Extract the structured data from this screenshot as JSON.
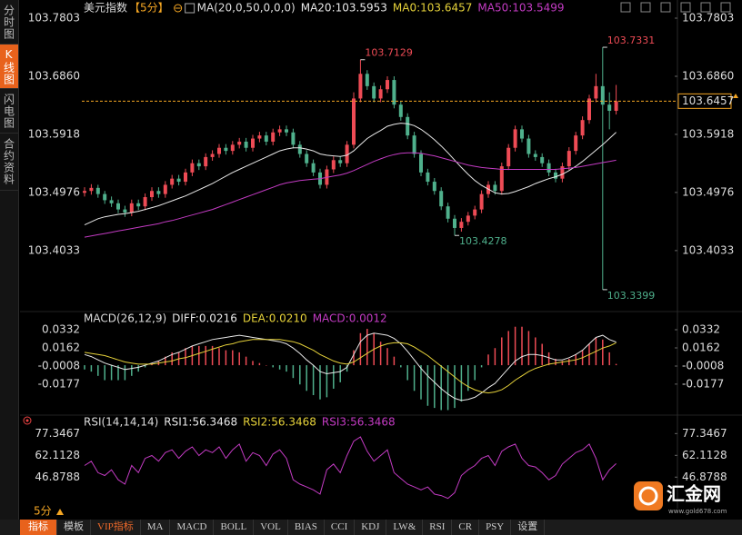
{
  "sidebar": {
    "tabs": [
      "分时图",
      "K线图",
      "闪电图",
      "合约资料"
    ]
  },
  "period_selector": "5分",
  "toolbar": {
    "items": [
      "指标",
      "模板",
      "VIP指标",
      "MA",
      "MACD",
      "BOLL",
      "VOL",
      "BIAS",
      "CCI",
      "KDJ",
      "LW&",
      "RSI",
      "CR",
      "PSY",
      "设置"
    ]
  },
  "logo": {
    "name": "汇金网",
    "url": "www.gold678.com"
  },
  "chart_data": [
    {
      "type": "candlestick",
      "title": "美元指数",
      "period": "【5分】",
      "indicator": "MA(20,0,50,0,0,0)",
      "up_color": "#ee4b55",
      "down_color": "#4fb08c",
      "last_price_color": "#f5a623",
      "open": [
        103.497,
        103.5,
        103.505,
        103.495,
        103.485,
        103.48,
        103.47,
        103.465,
        103.48,
        103.475,
        103.49,
        103.5,
        103.495,
        103.51,
        103.52,
        103.515,
        103.53,
        103.545,
        103.54,
        103.555,
        103.56,
        103.57,
        103.565,
        103.575,
        103.58,
        103.57,
        103.585,
        103.59,
        103.58,
        103.595,
        103.6,
        103.595,
        103.575,
        103.56,
        103.545,
        103.53,
        103.51,
        103.535,
        103.55,
        103.545,
        103.575,
        103.65,
        103.69,
        103.67,
        103.65,
        103.665,
        103.68,
        103.64,
        103.62,
        103.59,
        103.56,
        103.53,
        103.515,
        103.5,
        103.475,
        103.455,
        103.44,
        103.45,
        103.46,
        103.47,
        103.495,
        103.51,
        103.5,
        103.54,
        103.57,
        103.6,
        103.585,
        103.56,
        103.555,
        103.545,
        103.53,
        103.52,
        103.54,
        103.565,
        103.59,
        103.615,
        103.65,
        103.67,
        103.64,
        103.63
      ],
      "high": [
        103.506,
        103.511,
        103.51,
        103.5,
        103.491,
        103.486,
        103.476,
        103.486,
        103.486,
        103.496,
        103.506,
        103.506,
        103.516,
        103.526,
        103.526,
        103.536,
        103.551,
        103.551,
        103.561,
        103.566,
        103.576,
        103.576,
        103.581,
        103.586,
        103.586,
        103.591,
        103.596,
        103.596,
        103.601,
        103.606,
        103.606,
        103.601,
        103.581,
        103.566,
        103.551,
        103.536,
        103.541,
        103.556,
        103.556,
        103.581,
        103.66,
        103.7129,
        103.696,
        103.676,
        103.671,
        103.686,
        103.686,
        103.646,
        103.626,
        103.596,
        103.566,
        103.536,
        103.521,
        103.506,
        103.481,
        103.461,
        103.456,
        103.466,
        103.476,
        103.501,
        103.516,
        103.516,
        103.546,
        103.576,
        103.606,
        103.606,
        103.591,
        103.566,
        103.561,
        103.551,
        103.536,
        103.546,
        103.571,
        103.596,
        103.621,
        103.656,
        103.69,
        103.7331,
        103.66,
        103.672
      ],
      "low": [
        103.491,
        103.494,
        103.489,
        103.479,
        103.474,
        103.464,
        103.458,
        103.459,
        103.469,
        103.469,
        103.484,
        103.489,
        103.489,
        103.504,
        103.509,
        103.509,
        103.524,
        103.534,
        103.534,
        103.549,
        103.554,
        103.559,
        103.559,
        103.569,
        103.564,
        103.564,
        103.579,
        103.574,
        103.574,
        103.589,
        103.589,
        103.569,
        103.554,
        103.539,
        103.524,
        103.504,
        103.504,
        103.529,
        103.539,
        103.539,
        103.569,
        103.644,
        103.664,
        103.644,
        103.644,
        103.659,
        103.634,
        103.614,
        103.584,
        103.554,
        103.524,
        103.509,
        103.494,
        103.469,
        103.449,
        103.4278,
        103.434,
        103.444,
        103.454,
        103.464,
        103.489,
        103.494,
        103.494,
        103.534,
        103.564,
        103.579,
        103.554,
        103.549,
        103.539,
        103.524,
        103.514,
        103.514,
        103.534,
        103.559,
        103.584,
        103.609,
        103.644,
        103.3399,
        103.6,
        103.624
      ],
      "close": [
        103.5,
        103.505,
        103.495,
        103.485,
        103.48,
        103.47,
        103.465,
        103.48,
        103.475,
        103.49,
        103.5,
        103.495,
        103.51,
        103.52,
        103.515,
        103.53,
        103.545,
        103.54,
        103.555,
        103.56,
        103.57,
        103.565,
        103.575,
        103.58,
        103.57,
        103.585,
        103.59,
        103.58,
        103.595,
        103.6,
        103.595,
        103.575,
        103.56,
        103.545,
        103.53,
        103.51,
        103.535,
        103.55,
        103.545,
        103.575,
        103.65,
        103.69,
        103.67,
        103.65,
        103.665,
        103.68,
        103.64,
        103.62,
        103.59,
        103.56,
        103.53,
        103.515,
        103.5,
        103.475,
        103.455,
        103.44,
        103.45,
        103.46,
        103.47,
        103.495,
        103.51,
        103.5,
        103.54,
        103.57,
        103.6,
        103.585,
        103.56,
        103.555,
        103.545,
        103.53,
        103.52,
        103.54,
        103.565,
        103.59,
        103.615,
        103.65,
        103.67,
        103.64,
        103.63,
        103.6457
      ],
      "series": [
        {
          "name": "MA20:103.5953",
          "color": "#e8e8e8",
          "values": [
            103.445,
            103.45,
            103.455,
            103.458,
            103.46,
            103.462,
            103.463,
            103.465,
            103.467,
            103.47,
            103.473,
            103.476,
            103.48,
            103.484,
            103.488,
            103.492,
            103.497,
            103.502,
            103.507,
            103.512,
            103.518,
            103.524,
            103.53,
            103.535,
            103.54,
            103.545,
            103.55,
            103.555,
            103.56,
            103.565,
            103.568,
            103.57,
            103.57,
            103.568,
            103.565,
            103.56,
            103.558,
            103.557,
            103.556,
            103.558,
            103.565,
            103.575,
            103.585,
            103.592,
            103.598,
            103.605,
            103.608,
            103.61,
            103.609,
            103.606,
            103.6,
            103.592,
            103.583,
            103.573,
            103.562,
            103.55,
            103.538,
            103.527,
            103.517,
            103.509,
            103.503,
            103.497,
            103.495,
            103.496,
            103.499,
            103.503,
            103.507,
            103.512,
            103.516,
            103.52,
            103.523,
            103.527,
            103.533,
            103.54,
            103.548,
            103.557,
            103.566,
            103.575,
            103.585,
            103.5953
          ]
        },
        {
          "name": "MA0:103.6457",
          "color": "#e6d23a"
        },
        {
          "name": "MA50:103.5499",
          "color": "#c33bc3",
          "values": [
            103.425,
            103.427,
            103.429,
            103.431,
            103.433,
            103.435,
            103.437,
            103.439,
            103.441,
            103.443,
            103.445,
            103.447,
            103.45,
            103.452,
            103.455,
            103.458,
            103.461,
            103.464,
            103.467,
            103.47,
            103.474,
            103.478,
            103.482,
            103.486,
            103.49,
            103.494,
            103.498,
            103.502,
            103.506,
            103.51,
            103.513,
            103.515,
            103.517,
            103.518,
            103.519,
            103.52,
            103.522,
            103.524,
            103.526,
            103.529,
            103.533,
            103.538,
            103.543,
            103.548,
            103.552,
            103.556,
            103.559,
            103.561,
            103.562,
            103.562,
            103.561,
            103.559,
            103.557,
            103.554,
            103.551,
            103.548,
            103.545,
            103.542,
            103.54,
            103.538,
            103.537,
            103.536,
            103.535,
            103.535,
            103.535,
            103.535,
            103.535,
            103.535,
            103.535,
            103.535,
            103.535,
            103.536,
            103.537,
            103.538,
            103.54,
            103.542,
            103.544,
            103.546,
            103.548,
            103.5499
          ]
        }
      ],
      "ylim": [
        103.3088,
        103.7803
      ],
      "yticks": [
        103.7803,
        {
          "value": 103.686,
          "label": "103.6860"
        },
        103.5918,
        103.4976,
        103.4033
      ]
    },
    {
      "type": "macd",
      "title": "MACD(26,12,9)",
      "up_color": "#ee4b55",
      "down_color": "#4fb08c",
      "series": [
        {
          "name": "DIFF:0.0216",
          "color": "#e8e8e8",
          "values": [
            0.01,
            0.008,
            0.005,
            0.002,
            0.0,
            -0.002,
            -0.004,
            -0.003,
            -0.002,
            0.0,
            0.002,
            0.004,
            0.007,
            0.01,
            0.012,
            0.015,
            0.018,
            0.02,
            0.022,
            0.024,
            0.025,
            0.026,
            0.027,
            0.028,
            0.027,
            0.026,
            0.025,
            0.024,
            0.023,
            0.022,
            0.02,
            0.016,
            0.011,
            0.005,
            0.0,
            -0.006,
            -0.008,
            -0.007,
            -0.006,
            -0.002,
            0.01,
            0.022,
            0.028,
            0.03,
            0.029,
            0.028,
            0.025,
            0.02,
            0.013,
            0.005,
            -0.003,
            -0.01,
            -0.016,
            -0.022,
            -0.027,
            -0.031,
            -0.033,
            -0.032,
            -0.03,
            -0.026,
            -0.021,
            -0.017,
            -0.01,
            -0.003,
            0.004,
            0.008,
            0.01,
            0.01,
            0.009,
            0.007,
            0.005,
            0.005,
            0.007,
            0.01,
            0.014,
            0.02,
            0.026,
            0.028,
            0.024,
            0.0216
          ]
        },
        {
          "name": "DEA:0.0210",
          "color": "#e6d23a",
          "values": [
            0.012,
            0.011,
            0.01,
            0.009,
            0.007,
            0.005,
            0.003,
            0.002,
            0.001,
            0.001,
            0.001,
            0.002,
            0.003,
            0.004,
            0.006,
            0.007,
            0.009,
            0.011,
            0.013,
            0.015,
            0.017,
            0.019,
            0.02,
            0.022,
            0.023,
            0.024,
            0.024,
            0.024,
            0.024,
            0.024,
            0.023,
            0.022,
            0.02,
            0.017,
            0.014,
            0.01,
            0.007,
            0.004,
            0.002,
            0.001,
            0.003,
            0.007,
            0.011,
            0.015,
            0.018,
            0.02,
            0.021,
            0.021,
            0.02,
            0.017,
            0.013,
            0.009,
            0.004,
            -0.001,
            -0.006,
            -0.011,
            -0.016,
            -0.02,
            -0.023,
            -0.025,
            -0.026,
            -0.025,
            -0.023,
            -0.019,
            -0.014,
            -0.01,
            -0.006,
            -0.003,
            -0.001,
            0.001,
            0.002,
            0.003,
            0.004,
            0.005,
            0.007,
            0.01,
            0.013,
            0.016,
            0.018,
            0.021
          ]
        },
        {
          "name": "MACD:0.0012",
          "color": "#c33bc3",
          "kind": "bar",
          "values": [
            -0.004,
            -0.006,
            -0.01,
            -0.014,
            -0.014,
            -0.014,
            -0.014,
            -0.01,
            -0.006,
            -0.002,
            0.002,
            0.004,
            0.008,
            0.012,
            0.012,
            0.016,
            0.018,
            0.018,
            0.018,
            0.018,
            0.016,
            0.014,
            0.014,
            0.012,
            0.008,
            0.004,
            0.002,
            0.0,
            -0.002,
            -0.004,
            -0.006,
            -0.012,
            -0.018,
            -0.024,
            -0.028,
            -0.032,
            -0.03,
            -0.022,
            -0.016,
            -0.006,
            0.014,
            0.03,
            0.034,
            0.03,
            0.022,
            0.016,
            0.008,
            -0.002,
            -0.014,
            -0.024,
            -0.032,
            -0.038,
            -0.04,
            -0.042,
            -0.042,
            -0.04,
            -0.034,
            -0.024,
            -0.014,
            -0.002,
            0.01,
            0.016,
            0.026,
            0.032,
            0.036,
            0.036,
            0.032,
            0.026,
            0.02,
            0.012,
            0.006,
            0.004,
            0.006,
            0.01,
            0.014,
            0.02,
            0.026,
            0.024,
            0.012,
            0.0012
          ]
        }
      ],
      "ylim": [
        -0.045,
        0.04
      ],
      "yticks": [
        0.0332,
        0.0162,
        -0.0008,
        -0.0177
      ]
    },
    {
      "type": "line",
      "title": "RSI(14,14,14)",
      "series": [
        {
          "name": "RSI1:56.3468",
          "color": "#e8e8e8"
        },
        {
          "name": "RSI2:56.3468",
          "color": "#e6d23a"
        },
        {
          "name": "RSI3:56.3468",
          "color": "#c33bc3",
          "values": [
            55,
            58,
            50,
            48,
            52,
            45,
            42,
            55,
            50,
            60,
            62,
            58,
            64,
            66,
            60,
            65,
            68,
            62,
            66,
            64,
            68,
            60,
            66,
            70,
            58,
            64,
            62,
            55,
            63,
            66,
            60,
            45,
            42,
            40,
            38,
            35,
            52,
            56,
            50,
            62,
            72,
            75,
            65,
            58,
            62,
            66,
            50,
            46,
            42,
            40,
            38,
            40,
            35,
            34,
            32,
            36,
            48,
            52,
            55,
            60,
            62,
            55,
            65,
            68,
            70,
            60,
            55,
            54,
            50,
            45,
            48,
            56,
            60,
            64,
            66,
            70,
            60,
            45,
            52,
            56.3468
          ]
        }
      ],
      "ylim": [
        28,
        82
      ],
      "yticks": [
        77.3467,
        62.1128,
        46.8788
      ]
    }
  ]
}
